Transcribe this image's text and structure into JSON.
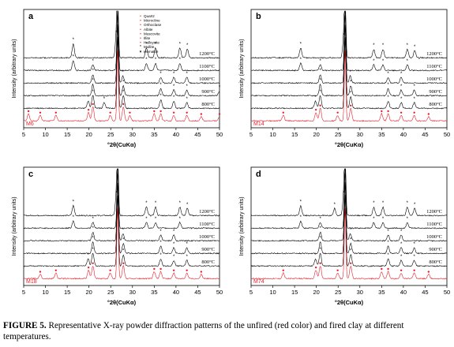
{
  "figure": {
    "caption_label": "FIGURE 5.",
    "caption_text": " Representative X-ray powder diffraction patterns of the unfired (red color) and fired clay at different temperatures."
  },
  "chart_data": [
    {
      "type": "line",
      "panel_label": "a",
      "sample_label": "M6",
      "ylabel": "Intensity (arbitrary units)",
      "xlabel": "°2θ(CuKα)",
      "xlim": [
        5,
        50
      ],
      "x_ticks": [
        "5",
        "10",
        "15",
        "20",
        "25",
        "30",
        "35",
        "40",
        "45",
        "50"
      ],
      "series": [
        {
          "name": "1200°C",
          "color": "#000000",
          "peaks": [
            [
              16.4,
              20
            ],
            [
              26.3,
              30
            ],
            [
              26.6,
              90
            ],
            [
              33.2,
              14
            ],
            [
              35.3,
              14
            ],
            [
              40.9,
              14
            ],
            [
              42.6,
              12
            ]
          ]
        },
        {
          "name": "1100°C",
          "color": "#000000",
          "peaks": [
            [
              16.4,
              14
            ],
            [
              20.9,
              8
            ],
            [
              26.6,
              95
            ],
            [
              33.2,
              10
            ],
            [
              35.3,
              10
            ],
            [
              40.9,
              10
            ]
          ]
        },
        {
          "name": "1000°C",
          "color": "#000000",
          "peaks": [
            [
              20.9,
              12
            ],
            [
              26.6,
              100
            ],
            [
              27.8,
              10
            ],
            [
              36.5,
              8
            ],
            [
              39.5,
              8
            ],
            [
              42.5,
              8
            ]
          ]
        },
        {
          "name": "900°C",
          "color": "#000000",
          "peaks": [
            [
              20.9,
              16
            ],
            [
              26.6,
              100
            ],
            [
              27.9,
              14
            ],
            [
              36.5,
              10
            ],
            [
              39.5,
              8
            ],
            [
              42.5,
              8
            ],
            [
              50.0,
              6
            ]
          ]
        },
        {
          "name": "800°C",
          "color": "#000000",
          "peaks": [
            [
              19.8,
              10
            ],
            [
              20.9,
              18
            ],
            [
              23.5,
              8
            ],
            [
              26.6,
              100
            ],
            [
              27.9,
              18
            ],
            [
              36.5,
              12
            ],
            [
              39.5,
              10
            ],
            [
              42.5,
              8
            ]
          ]
        },
        {
          "name": "M6",
          "color": "#e8202a",
          "peaks": [
            [
              6.1,
              10
            ],
            [
              8.8,
              8
            ],
            [
              12.4,
              8
            ],
            [
              19.9,
              12
            ],
            [
              20.9,
              20
            ],
            [
              24.9,
              8
            ],
            [
              26.6,
              100
            ],
            [
              27.9,
              20
            ],
            [
              29.4,
              8
            ],
            [
              35.0,
              10
            ],
            [
              36.5,
              10
            ],
            [
              39.5,
              8
            ],
            [
              42.5,
              8
            ],
            [
              45.8,
              6
            ],
            [
              50.0,
              6
            ]
          ]
        }
      ],
      "legend": [
        "Quartz",
        "Microcline",
        "Orthoclase",
        "Albite",
        "Muscovite",
        "Illite",
        "Halloysite",
        "Mullite",
        "Hematite"
      ],
      "legend_placement": "top-right"
    },
    {
      "type": "line",
      "panel_label": "b",
      "sample_label": "M14",
      "ylabel": "Intensity (arbitrary units)",
      "xlabel": "°2θ(CuKα)",
      "xlim": [
        5,
        50
      ],
      "x_ticks": [
        "5",
        "10",
        "15",
        "20",
        "25",
        "30",
        "35",
        "40",
        "45",
        "50"
      ],
      "series": [
        {
          "name": "1200°C",
          "color": "#000000",
          "peaks": [
            [
              16.4,
              14
            ],
            [
              26.3,
              26
            ],
            [
              26.6,
              90
            ],
            [
              33.2,
              12
            ],
            [
              35.3,
              12
            ],
            [
              40.9,
              12
            ],
            [
              42.6,
              10
            ]
          ]
        },
        {
          "name": "1100°C",
          "color": "#000000",
          "peaks": [
            [
              16.4,
              10
            ],
            [
              20.9,
              8
            ],
            [
              26.6,
              95
            ],
            [
              33.2,
              8
            ],
            [
              35.3,
              8
            ],
            [
              40.9,
              8
            ]
          ]
        },
        {
          "name": "1000°C",
          "color": "#000000",
          "peaks": [
            [
              20.9,
              12
            ],
            [
              26.6,
              100
            ],
            [
              27.8,
              10
            ],
            [
              36.5,
              8
            ],
            [
              39.5,
              8
            ]
          ]
        },
        {
          "name": "900°C",
          "color": "#000000",
          "peaks": [
            [
              20.9,
              16
            ],
            [
              26.6,
              100
            ],
            [
              27.9,
              14
            ],
            [
              36.5,
              10
            ],
            [
              39.5,
              8
            ],
            [
              42.5,
              8
            ]
          ]
        },
        {
          "name": "800°C",
          "color": "#000000",
          "peaks": [
            [
              19.8,
              10
            ],
            [
              20.9,
              18
            ],
            [
              26.6,
              100
            ],
            [
              27.9,
              16
            ],
            [
              36.5,
              10
            ],
            [
              39.5,
              8
            ],
            [
              42.5,
              8
            ]
          ]
        },
        {
          "name": "M14",
          "color": "#e8202a",
          "peaks": [
            [
              12.4,
              8
            ],
            [
              19.9,
              12
            ],
            [
              20.9,
              18
            ],
            [
              24.9,
              8
            ],
            [
              26.6,
              100
            ],
            [
              27.9,
              18
            ],
            [
              35.0,
              10
            ],
            [
              36.5,
              10
            ],
            [
              39.5,
              8
            ],
            [
              42.5,
              8
            ],
            [
              45.8,
              6
            ]
          ]
        }
      ]
    },
    {
      "type": "line",
      "panel_label": "c",
      "sample_label": "M18",
      "ylabel": "Intensity (arbitrary units)",
      "xlabel": "°2θ(CuKα)",
      "xlim": [
        5,
        50
      ],
      "x_ticks": [
        "5",
        "10",
        "15",
        "20",
        "25",
        "30",
        "35",
        "40",
        "45",
        "50"
      ],
      "series": [
        {
          "name": "1200°C",
          "color": "#000000",
          "peaks": [
            [
              16.4,
              14
            ],
            [
              26.3,
              26
            ],
            [
              26.6,
              90
            ],
            [
              33.2,
              12
            ],
            [
              35.3,
              12
            ],
            [
              40.9,
              12
            ],
            [
              42.6,
              10
            ]
          ]
        },
        {
          "name": "1100°C",
          "color": "#000000",
          "peaks": [
            [
              16.4,
              10
            ],
            [
              20.9,
              8
            ],
            [
              26.6,
              95
            ],
            [
              33.2,
              8
            ],
            [
              35.3,
              8
            ],
            [
              40.9,
              8
            ]
          ]
        },
        {
          "name": "1000°C",
          "color": "#000000",
          "peaks": [
            [
              20.9,
              12
            ],
            [
              26.6,
              100
            ],
            [
              27.8,
              10
            ],
            [
              36.5,
              8
            ],
            [
              39.5,
              8
            ]
          ]
        },
        {
          "name": "900°C",
          "color": "#000000",
          "peaks": [
            [
              20.9,
              16
            ],
            [
              26.6,
              100
            ],
            [
              27.9,
              14
            ],
            [
              36.5,
              10
            ],
            [
              39.5,
              8
            ],
            [
              42.5,
              8
            ]
          ]
        },
        {
          "name": "800°C",
          "color": "#000000",
          "peaks": [
            [
              19.8,
              10
            ],
            [
              20.9,
              18
            ],
            [
              26.6,
              100
            ],
            [
              27.9,
              16
            ],
            [
              36.5,
              10
            ],
            [
              39.5,
              8
            ],
            [
              42.5,
              8
            ]
          ]
        },
        {
          "name": "M18",
          "color": "#e8202a",
          "peaks": [
            [
              8.8,
              6
            ],
            [
              12.4,
              8
            ],
            [
              19.9,
              12
            ],
            [
              20.9,
              18
            ],
            [
              24.9,
              8
            ],
            [
              26.6,
              100
            ],
            [
              27.9,
              18
            ],
            [
              35.0,
              10
            ],
            [
              36.5,
              10
            ],
            [
              39.5,
              8
            ],
            [
              42.5,
              8
            ],
            [
              45.8,
              6
            ]
          ]
        }
      ]
    },
    {
      "type": "line",
      "panel_label": "d",
      "sample_label": "M74",
      "ylabel": "Intensity (arbitrary units)",
      "xlabel": "°2θ(CuKα)",
      "xlim": [
        5,
        50
      ],
      "x_ticks": [
        "5",
        "10",
        "15",
        "20",
        "25",
        "30",
        "35",
        "40",
        "45",
        "50"
      ],
      "series": [
        {
          "name": "1200°C",
          "color": "#000000",
          "peaks": [
            [
              16.4,
              14
            ],
            [
              24.2,
              10
            ],
            [
              26.3,
              26
            ],
            [
              26.6,
              90
            ],
            [
              33.2,
              12
            ],
            [
              35.3,
              12
            ],
            [
              40.9,
              12
            ],
            [
              42.6,
              10
            ]
          ]
        },
        {
          "name": "1100°C",
          "color": "#000000",
          "peaks": [
            [
              16.4,
              10
            ],
            [
              20.9,
              8
            ],
            [
              26.6,
              95
            ],
            [
              33.2,
              8
            ],
            [
              35.3,
              8
            ],
            [
              40.9,
              8
            ]
          ]
        },
        {
          "name": "1000°C",
          "color": "#000000",
          "peaks": [
            [
              20.9,
              12
            ],
            [
              26.6,
              100
            ],
            [
              27.8,
              10
            ],
            [
              36.5,
              8
            ],
            [
              39.5,
              8
            ]
          ]
        },
        {
          "name": "900°C",
          "color": "#000000",
          "peaks": [
            [
              20.9,
              16
            ],
            [
              26.6,
              100
            ],
            [
              27.9,
              14
            ],
            [
              36.5,
              10
            ],
            [
              39.5,
              8
            ],
            [
              42.5,
              8
            ]
          ]
        },
        {
          "name": "800°C",
          "color": "#000000",
          "peaks": [
            [
              19.8,
              10
            ],
            [
              20.9,
              18
            ],
            [
              26.6,
              100
            ],
            [
              27.9,
              16
            ],
            [
              36.5,
              10
            ],
            [
              39.5,
              8
            ],
            [
              42.5,
              8
            ]
          ]
        },
        {
          "name": "M74",
          "color": "#e8202a",
          "peaks": [
            [
              12.4,
              8
            ],
            [
              19.9,
              12
            ],
            [
              20.9,
              18
            ],
            [
              24.9,
              8
            ],
            [
              26.6,
              100
            ],
            [
              27.9,
              18
            ],
            [
              35.0,
              10
            ],
            [
              36.5,
              10
            ],
            [
              39.5,
              8
            ],
            [
              42.5,
              8
            ],
            [
              45.8,
              6
            ]
          ]
        }
      ]
    }
  ]
}
